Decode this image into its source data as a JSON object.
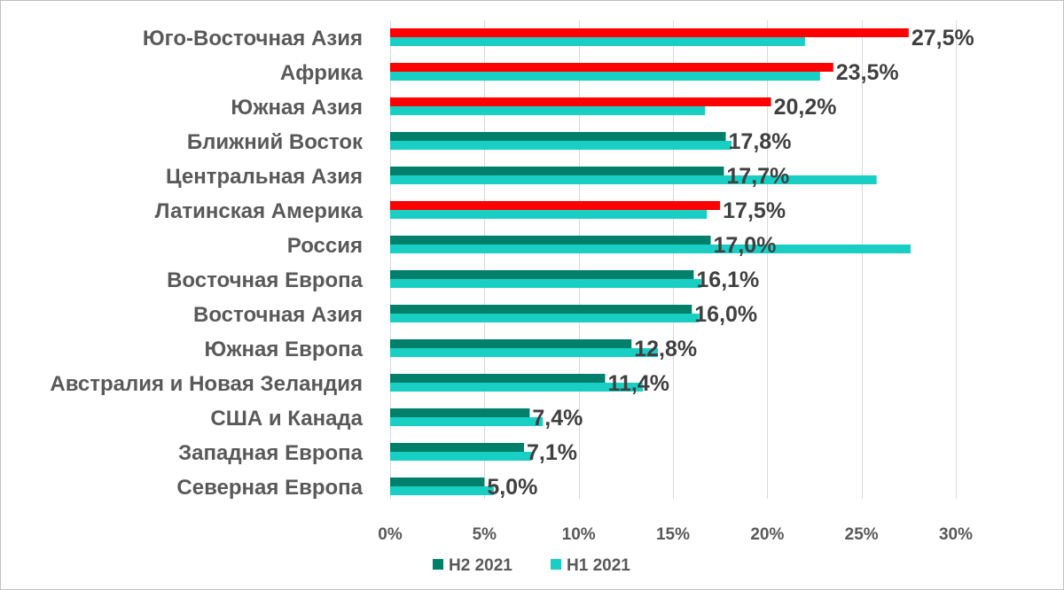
{
  "chart_data": {
    "type": "bar",
    "orientation": "horizontal",
    "categories": [
      "Юго-Восточная Азия",
      "Африка",
      "Южная Азия",
      "Ближний Восток",
      "Центральная Азия",
      "Латинская Америка",
      "Россия",
      "Восточная Европа",
      "Восточная Азия",
      "Южная Европа",
      "Австралия и Новая Зеландия",
      "США и Канада",
      "Западная Европа",
      "Северная Европа"
    ],
    "series": [
      {
        "name": "H2 2021",
        "color": "#00806a",
        "values": [
          27.5,
          23.5,
          20.2,
          17.8,
          17.7,
          17.5,
          17.0,
          16.1,
          16.0,
          12.8,
          11.4,
          7.4,
          7.1,
          5.0
        ]
      },
      {
        "name": "H1 2021",
        "color": "#19cfc4",
        "values": [
          22.0,
          22.8,
          16.7,
          18.1,
          25.8,
          16.8,
          27.6,
          16.5,
          16.4,
          14.2,
          13.4,
          8.1,
          7.5,
          5.5
        ]
      }
    ],
    "data_labels": [
      "27,5%",
      "23,5%",
      "20,2%",
      "17,8%",
      "17,7%",
      "17,5%",
      "17,0%",
      "16,1%",
      "16,0%",
      "12,8%",
      "11,4%",
      "7,4%",
      "7,1%",
      "5,0%"
    ],
    "highlighted_categories": [
      0,
      1,
      2,
      5
    ],
    "highlight_color": "#ff0000",
    "xlim": [
      0,
      30
    ],
    "xticks": [
      0,
      5,
      10,
      15,
      20,
      25,
      30
    ],
    "xtick_labels": [
      "0%",
      "5%",
      "10%",
      "15%",
      "20%",
      "25%",
      "30%"
    ],
    "grid": true,
    "legend": {
      "position": "bottom",
      "entries": [
        "H2 2021",
        "H1 2021"
      ]
    }
  }
}
